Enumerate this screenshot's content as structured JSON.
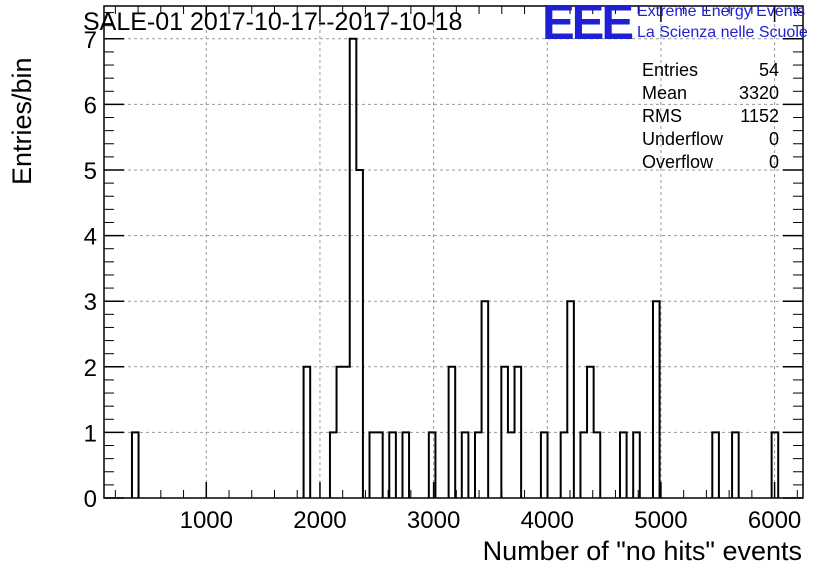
{
  "title": "SALE-01 2017-10-17--2017-10-18",
  "logo": {
    "mark": "EEE",
    "line1": "Extreme Energy Events",
    "line2": "La Scienza nelle Scuole",
    "color": "#1f1fd6"
  },
  "stats": [
    {
      "label": "Entries",
      "value": "54"
    },
    {
      "label": "Mean",
      "value": "3320"
    },
    {
      "label": "RMS",
      "value": "1152"
    },
    {
      "label": "Underflow",
      "value": "0"
    },
    {
      "label": "Overflow",
      "value": "0"
    }
  ],
  "chart_data": {
    "type": "histogram",
    "title": "SALE-01 2017-10-17--2017-10-18",
    "xlabel": "Number of \"no hits\" events",
    "ylabel": "Entries/bin",
    "xlim": [
      100,
      6250
    ],
    "ylim": [
      0,
      7.5
    ],
    "xticks": [
      1000,
      2000,
      3000,
      4000,
      5000,
      6000
    ],
    "yticks": [
      0,
      1,
      2,
      3,
      4,
      5,
      6,
      7
    ],
    "grid": true,
    "bin_width": 58,
    "bins": [
      {
        "x0": 346,
        "x1": 404,
        "count": 1
      },
      {
        "x0": 1856,
        "x1": 1914,
        "count": 2
      },
      {
        "x0": 2088,
        "x1": 2146,
        "count": 1
      },
      {
        "x0": 2146,
        "x1": 2204,
        "count": 2
      },
      {
        "x0": 2204,
        "x1": 2262,
        "count": 2
      },
      {
        "x0": 2262,
        "x1": 2320,
        "count": 7
      },
      {
        "x0": 2320,
        "x1": 2378,
        "count": 5
      },
      {
        "x0": 2436,
        "x1": 2494,
        "count": 1
      },
      {
        "x0": 2494,
        "x1": 2552,
        "count": 1
      },
      {
        "x0": 2610,
        "x1": 2668,
        "count": 1
      },
      {
        "x0": 2726,
        "x1": 2784,
        "count": 1
      },
      {
        "x0": 2958,
        "x1": 3016,
        "count": 1
      },
      {
        "x0": 3132,
        "x1": 3190,
        "count": 2
      },
      {
        "x0": 3248,
        "x1": 3306,
        "count": 1
      },
      {
        "x0": 3364,
        "x1": 3422,
        "count": 1
      },
      {
        "x0": 3422,
        "x1": 3480,
        "count": 3
      },
      {
        "x0": 3596,
        "x1": 3654,
        "count": 2
      },
      {
        "x0": 3654,
        "x1": 3712,
        "count": 1
      },
      {
        "x0": 3712,
        "x1": 3770,
        "count": 2
      },
      {
        "x0": 3944,
        "x1": 4002,
        "count": 1
      },
      {
        "x0": 4118,
        "x1": 4176,
        "count": 1
      },
      {
        "x0": 4176,
        "x1": 4234,
        "count": 3
      },
      {
        "x0": 4292,
        "x1": 4350,
        "count": 1
      },
      {
        "x0": 4350,
        "x1": 4408,
        "count": 2
      },
      {
        "x0": 4408,
        "x1": 4466,
        "count": 1
      },
      {
        "x0": 4640,
        "x1": 4698,
        "count": 1
      },
      {
        "x0": 4756,
        "x1": 4814,
        "count": 1
      },
      {
        "x0": 4930,
        "x1": 4988,
        "count": 3
      },
      {
        "x0": 5452,
        "x1": 5510,
        "count": 1
      },
      {
        "x0": 5626,
        "x1": 5684,
        "count": 1
      },
      {
        "x0": 5974,
        "x1": 6032,
        "count": 1
      }
    ]
  }
}
